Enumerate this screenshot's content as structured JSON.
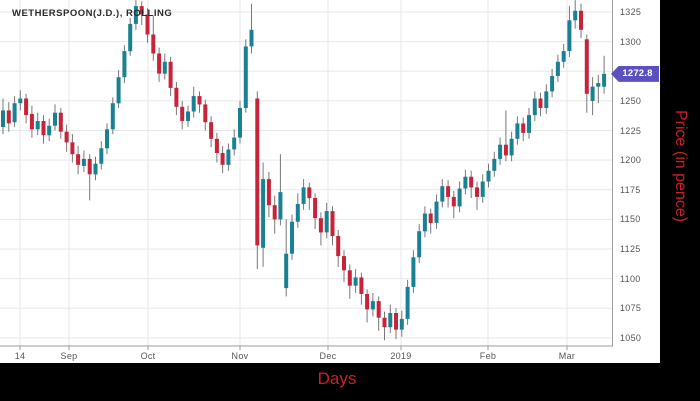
{
  "title": "WETHERSPOON(J.D.), ROLLING",
  "axes": {
    "x_label": "Days",
    "y_label": "Price (in pence)"
  },
  "last_price": {
    "label": "1272.8",
    "value": 1272.8
  },
  "colors": {
    "up": "#1a8193",
    "down": "#c82339",
    "wick": "#777777",
    "grid": "#e7e7e7",
    "axis": "#9b9b9b",
    "tick_text": "#555555",
    "title_text": "#2b2b2b",
    "badge_bg": "#5b50c0",
    "badge_text": "#ffffff",
    "axis_label_red": "#cb2027",
    "panel_black": "#000000"
  },
  "chart_data": {
    "type": "candlestick",
    "title": "WETHERSPOON(J.D.), ROLLING",
    "xlabel": "Days",
    "ylabel": "Price (in pence)",
    "legend": "none",
    "grid": "on",
    "y_range": [
      1045,
      1338
    ],
    "y_ticks": [
      {
        "value": 1325,
        "label": "1325"
      },
      {
        "value": 1300,
        "label": "1300"
      },
      {
        "value": 1275,
        "label": ""
      },
      {
        "value": 1250,
        "label": "1250"
      },
      {
        "value": 1225,
        "label": "1225"
      },
      {
        "value": 1200,
        "label": "1200"
      },
      {
        "value": 1175,
        "label": "1175"
      },
      {
        "value": 1150,
        "label": "1150"
      },
      {
        "value": 1125,
        "label": "1125"
      },
      {
        "value": 1100,
        "label": "1100"
      },
      {
        "value": 1075,
        "label": "1075"
      },
      {
        "value": 1050,
        "label": "1050"
      }
    ],
    "x_ticks": [
      {
        "index": 2.94,
        "label": "14"
      },
      {
        "index": 11.42,
        "label": "Sep"
      },
      {
        "index": 25.09,
        "label": "Oct"
      },
      {
        "index": 41.0,
        "label": "Nov"
      },
      {
        "index": 56.23,
        "label": "Dec"
      },
      {
        "index": 68.86,
        "label": "2019"
      },
      {
        "index": 83.91,
        "label": "Feb"
      },
      {
        "index": 97.58,
        "label": "Mar"
      }
    ],
    "ohlc_format": [
      "open",
      "high",
      "low",
      "close"
    ],
    "candles": [
      [
        1228,
        1252,
        1222,
        1242
      ],
      [
        1242,
        1249,
        1224,
        1231
      ],
      [
        1232,
        1254,
        1228,
        1248
      ],
      [
        1248,
        1259,
        1242,
        1252
      ],
      [
        1252,
        1256,
        1231,
        1238
      ],
      [
        1239,
        1246,
        1219,
        1226
      ],
      [
        1226,
        1240,
        1221,
        1233
      ],
      [
        1233,
        1238,
        1214,
        1221
      ],
      [
        1221,
        1235,
        1216,
        1229
      ],
      [
        1229,
        1247,
        1225,
        1240
      ],
      [
        1240,
        1244,
        1218,
        1224
      ],
      [
        1224,
        1230,
        1207,
        1215
      ],
      [
        1215,
        1222,
        1198,
        1205
      ],
      [
        1205,
        1212,
        1188,
        1196
      ],
      [
        1195,
        1208,
        1190,
        1201
      ],
      [
        1201,
        1205,
        1166,
        1188
      ],
      [
        1188,
        1203,
        1183,
        1197
      ],
      [
        1197,
        1216,
        1192,
        1210
      ],
      [
        1210,
        1231,
        1205,
        1226
      ],
      [
        1226,
        1253,
        1222,
        1248
      ],
      [
        1248,
        1276,
        1244,
        1270
      ],
      [
        1270,
        1297,
        1265,
        1292
      ],
      [
        1292,
        1320,
        1288,
        1315
      ],
      [
        1315,
        1336,
        1310,
        1330
      ],
      [
        1330,
        1334,
        1314,
        1323
      ],
      [
        1323,
        1328,
        1299,
        1306
      ],
      [
        1306,
        1322,
        1284,
        1290
      ],
      [
        1290,
        1295,
        1266,
        1273
      ],
      [
        1273,
        1290,
        1268,
        1283
      ],
      [
        1283,
        1287,
        1254,
        1261
      ],
      [
        1261,
        1266,
        1238,
        1245
      ],
      [
        1245,
        1250,
        1226,
        1233
      ],
      [
        1233,
        1246,
        1228,
        1241
      ],
      [
        1241,
        1262,
        1236,
        1254
      ],
      [
        1254,
        1258,
        1240,
        1247
      ],
      [
        1247,
        1251,
        1225,
        1232
      ],
      [
        1232,
        1237,
        1211,
        1218
      ],
      [
        1218,
        1223,
        1198,
        1206
      ],
      [
        1206,
        1212,
        1189,
        1196
      ],
      [
        1196,
        1214,
        1191,
        1209
      ],
      [
        1209,
        1226,
        1204,
        1219
      ],
      [
        1219,
        1250,
        1214,
        1244
      ],
      [
        1244,
        1302,
        1240,
        1296
      ],
      [
        1296,
        1332,
        1290,
        1310
      ],
      [
        1252,
        1258,
        1108,
        1128
      ],
      [
        1126,
        1198,
        1110,
        1184
      ],
      [
        1184,
        1190,
        1152,
        1162
      ],
      [
        1162,
        1170,
        1138,
        1150
      ],
      [
        1150,
        1205,
        1145,
        1173
      ],
      [
        1092,
        1150,
        1085,
        1121
      ],
      [
        1121,
        1154,
        1116,
        1148
      ],
      [
        1148,
        1172,
        1143,
        1163
      ],
      [
        1163,
        1184,
        1158,
        1177
      ],
      [
        1177,
        1181,
        1158,
        1168
      ],
      [
        1168,
        1172,
        1142,
        1151
      ],
      [
        1151,
        1156,
        1128,
        1139
      ],
      [
        1139,
        1164,
        1134,
        1157
      ],
      [
        1157,
        1161,
        1128,
        1136
      ],
      [
        1136,
        1141,
        1110,
        1119
      ],
      [
        1119,
        1124,
        1097,
        1107
      ],
      [
        1107,
        1112,
        1083,
        1094
      ],
      [
        1094,
        1108,
        1088,
        1101
      ],
      [
        1101,
        1105,
        1078,
        1087
      ],
      [
        1087,
        1091,
        1063,
        1074
      ],
      [
        1074,
        1088,
        1068,
        1081
      ],
      [
        1081,
        1085,
        1056,
        1067
      ],
      [
        1067,
        1072,
        1048,
        1059
      ],
      [
        1059,
        1078,
        1054,
        1071
      ],
      [
        1071,
        1075,
        1049,
        1057
      ],
      [
        1057,
        1073,
        1051,
        1066
      ],
      [
        1066,
        1099,
        1061,
        1093
      ],
      [
        1093,
        1124,
        1088,
        1118
      ],
      [
        1118,
        1146,
        1113,
        1140
      ],
      [
        1140,
        1161,
        1135,
        1155
      ],
      [
        1155,
        1159,
        1138,
        1147
      ],
      [
        1147,
        1171,
        1142,
        1165
      ],
      [
        1165,
        1184,
        1160,
        1178
      ],
      [
        1178,
        1183,
        1160,
        1169
      ],
      [
        1169,
        1174,
        1151,
        1161
      ],
      [
        1161,
        1182,
        1156,
        1176
      ],
      [
        1176,
        1192,
        1171,
        1186
      ],
      [
        1186,
        1191,
        1168,
        1177
      ],
      [
        1177,
        1182,
        1158,
        1169
      ],
      [
        1169,
        1188,
        1164,
        1182
      ],
      [
        1182,
        1197,
        1177,
        1191
      ],
      [
        1191,
        1207,
        1186,
        1201
      ],
      [
        1201,
        1219,
        1196,
        1213
      ],
      [
        1213,
        1242,
        1199,
        1204
      ],
      [
        1204,
        1224,
        1199,
        1218
      ],
      [
        1218,
        1237,
        1213,
        1231
      ],
      [
        1231,
        1236,
        1216,
        1223
      ],
      [
        1223,
        1244,
        1218,
        1238
      ],
      [
        1238,
        1258,
        1233,
        1252
      ],
      [
        1252,
        1257,
        1237,
        1244
      ],
      [
        1244,
        1264,
        1239,
        1258
      ],
      [
        1258,
        1277,
        1253,
        1271
      ],
      [
        1271,
        1289,
        1266,
        1283
      ],
      [
        1283,
        1298,
        1278,
        1292
      ],
      [
        1292,
        1330,
        1287,
        1318
      ],
      [
        1318,
        1335,
        1311,
        1326
      ],
      [
        1326,
        1332,
        1303,
        1310
      ],
      [
        1302,
        1306,
        1240,
        1256
      ],
      [
        1250,
        1270,
        1238,
        1262
      ],
      [
        1262,
        1272,
        1248,
        1265
      ],
      [
        1262,
        1288,
        1256,
        1272.8
      ]
    ]
  }
}
